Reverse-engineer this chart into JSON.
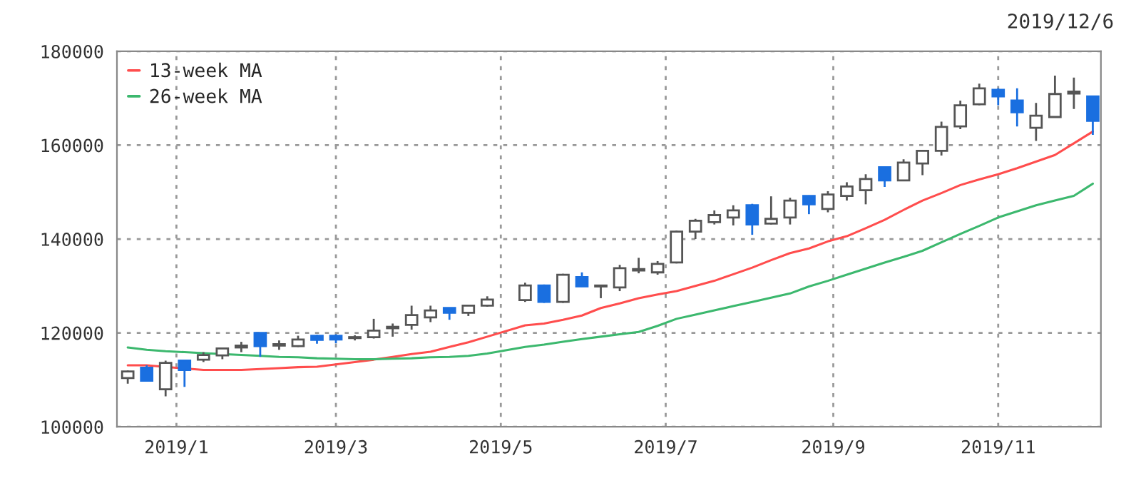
{
  "chart_data": {
    "type": "candlestick",
    "annotations": [
      "2019/12/6"
    ],
    "x": [
      "2018-12-14",
      "2018-12-21",
      "2018-12-28",
      "2019-01-04",
      "2019-01-11",
      "2019-01-18",
      "2019-01-25",
      "2019-02-01",
      "2019-02-08",
      "2019-02-15",
      "2019-02-22",
      "2019-03-01",
      "2019-03-08",
      "2019-03-15",
      "2019-03-22",
      "2019-03-29",
      "2019-04-05",
      "2019-04-12",
      "2019-04-19",
      "2019-04-26",
      "2019-05-10",
      "2019-05-17",
      "2019-05-24",
      "2019-05-31",
      "2019-06-07",
      "2019-06-14",
      "2019-06-21",
      "2019-06-28",
      "2019-07-05",
      "2019-07-12",
      "2019-07-19",
      "2019-07-26",
      "2019-08-02",
      "2019-08-09",
      "2019-08-16",
      "2019-08-23",
      "2019-08-30",
      "2019-09-06",
      "2019-09-13",
      "2019-09-20",
      "2019-09-27",
      "2019-10-04",
      "2019-10-11",
      "2019-10-18",
      "2019-10-25",
      "2019-11-01",
      "2019-11-08",
      "2019-11-15",
      "2019-11-22",
      "2019-11-29",
      "2019-12-06"
    ],
    "ohlc": [
      [
        110400,
        112000,
        109200,
        111800
      ],
      [
        112600,
        113100,
        109800,
        109800
      ],
      [
        108000,
        114100,
        106500,
        113600
      ],
      [
        114100,
        114300,
        108500,
        112100
      ],
      [
        114300,
        115900,
        113800,
        115300
      ],
      [
        115200,
        116900,
        114400,
        116700
      ],
      [
        116900,
        118100,
        115900,
        117300
      ],
      [
        120000,
        120000,
        114900,
        117200
      ],
      [
        117300,
        118400,
        116400,
        117600
      ],
      [
        117200,
        119400,
        117000,
        118600
      ],
      [
        119400,
        119600,
        117700,
        118500
      ],
      [
        119400,
        119700,
        117800,
        118600
      ],
      [
        118900,
        119500,
        118400,
        119100
      ],
      [
        119100,
        123000,
        118800,
        120500
      ],
      [
        121000,
        122000,
        119200,
        121300
      ],
      [
        121700,
        125800,
        120700,
        123800
      ],
      [
        123300,
        125800,
        122300,
        124800
      ],
      [
        125300,
        125400,
        122800,
        124300
      ],
      [
        124300,
        126000,
        123600,
        125800
      ],
      [
        125800,
        127800,
        125600,
        127100
      ],
      [
        127000,
        130700,
        126600,
        130100
      ],
      [
        130100,
        130300,
        126400,
        126600
      ],
      [
        126600,
        132600,
        126400,
        132400
      ],
      [
        131900,
        132900,
        129800,
        129900
      ],
      [
        129900,
        130200,
        127400,
        130100
      ],
      [
        129700,
        134500,
        128900,
        133800
      ],
      [
        133300,
        136000,
        132700,
        133600
      ],
      [
        132900,
        135300,
        132400,
        134700
      ],
      [
        135000,
        141800,
        134800,
        141600
      ],
      [
        141600,
        144300,
        140000,
        143900
      ],
      [
        143600,
        146100,
        143100,
        145100
      ],
      [
        144600,
        147200,
        142900,
        146100
      ],
      [
        147200,
        147500,
        140900,
        143100
      ],
      [
        143300,
        149100,
        143100,
        144300
      ],
      [
        144600,
        148800,
        143100,
        148200
      ],
      [
        149200,
        149300,
        145300,
        147400
      ],
      [
        146400,
        150200,
        145700,
        149500
      ],
      [
        149200,
        152100,
        148200,
        151200
      ],
      [
        150400,
        153800,
        147400,
        152800
      ],
      [
        155300,
        155400,
        151100,
        152500
      ],
      [
        152500,
        157000,
        152400,
        156300
      ],
      [
        156100,
        159000,
        153600,
        158800
      ],
      [
        158800,
        165000,
        157800,
        163900
      ],
      [
        164000,
        169500,
        163400,
        168500
      ],
      [
        168700,
        173100,
        168500,
        172100
      ],
      [
        171800,
        172100,
        168500,
        170400
      ],
      [
        169500,
        172100,
        164000,
        167000
      ],
      [
        163700,
        169000,
        160900,
        166300
      ],
      [
        166000,
        174800,
        165900,
        170900
      ],
      [
        171000,
        174400,
        167700,
        171400
      ],
      [
        170400,
        170500,
        162200,
        165200
      ]
    ],
    "series": [
      {
        "name": "13-week MA",
        "type": "line",
        "color": "#ff4d4d",
        "values": [
          113100,
          113100,
          null,
          null,
          112100,
          112100,
          112100,
          112300,
          112500,
          112700,
          112800,
          113300,
          113800,
          114300,
          114900,
          115500,
          116000,
          117000,
          118000,
          119200,
          121600,
          122000,
          122800,
          123700,
          125300,
          126300,
          127400,
          128200,
          128900,
          130000,
          131100,
          132500,
          133900,
          135500,
          137000,
          138000,
          139500,
          140600,
          142300,
          144100,
          146200,
          148200,
          149800,
          151500,
          152700,
          153800,
          155100,
          156500,
          157900,
          160400,
          162900
        ]
      },
      {
        "name": "26-week MA",
        "type": "line",
        "color": "#3cb86e",
        "values": [
          116900,
          116400,
          116100,
          115900,
          115700,
          115500,
          115300,
          115100,
          114900,
          114800,
          114600,
          114500,
          114400,
          114400,
          114500,
          114600,
          114800,
          114900,
          115100,
          115600,
          117000,
          117500,
          118100,
          118700,
          119200,
          119700,
          120200,
          121500,
          123000,
          123900,
          124800,
          125700,
          126600,
          127500,
          128400,
          129900,
          131100,
          132400,
          133700,
          135000,
          136200,
          137500,
          139300,
          141100,
          142800,
          144600,
          145900,
          147200,
          148200,
          149200,
          151800
        ]
      }
    ],
    "xlim": [
      "2018-12-10",
      "2019-12-09"
    ],
    "xticks": [
      {
        "value": "2019-01-01",
        "label": "2019/1"
      },
      {
        "value": "2019-03-01",
        "label": "2019/3"
      },
      {
        "value": "2019-05-01",
        "label": "2019/5"
      },
      {
        "value": "2019-07-01",
        "label": "2019/7"
      },
      {
        "value": "2019-09-01",
        "label": "2019/9"
      },
      {
        "value": "2019-11-01",
        "label": "2019/11"
      }
    ],
    "ylim": [
      100000,
      180000
    ],
    "yticks": [
      100000,
      120000,
      140000,
      160000,
      180000
    ],
    "grid": true,
    "legend": "top left"
  }
}
